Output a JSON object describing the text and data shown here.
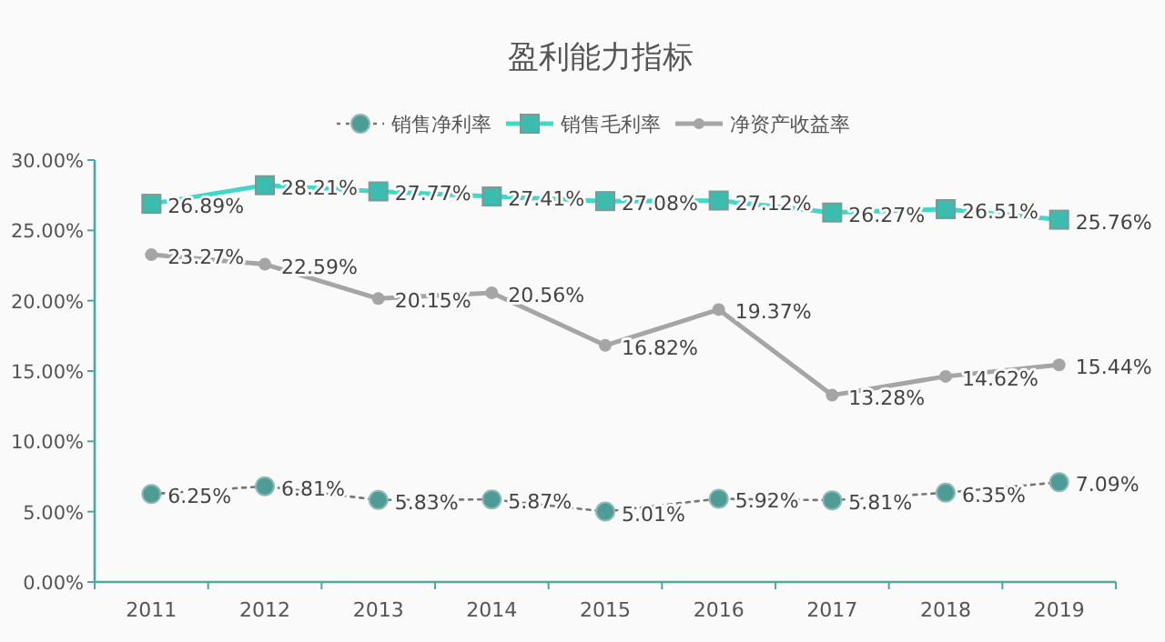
{
  "chart_data": {
    "type": "line",
    "title": "盈利能力指标",
    "categories": [
      "2011",
      "2012",
      "2013",
      "2014",
      "2015",
      "2016",
      "2017",
      "2018",
      "2019"
    ],
    "series": [
      {
        "name": "销售净利率",
        "color": "#4f9b95",
        "marker": "circle",
        "line_style": "dotted",
        "values": [
          6.25,
          6.81,
          5.83,
          5.87,
          5.01,
          5.92,
          5.81,
          6.35,
          7.09
        ],
        "value_labels": [
          "6.25%",
          "6.81%",
          "5.83%",
          "5.87%",
          "5.01%",
          "5.92%",
          "5.81%",
          "6.35%",
          "7.09%"
        ]
      },
      {
        "name": "销售毛利率",
        "color": "#40d9c8",
        "marker": "square",
        "line_style": "solid",
        "values": [
          26.89,
          28.21,
          27.77,
          27.41,
          27.08,
          27.12,
          26.27,
          26.51,
          25.76
        ],
        "value_labels": [
          "26.89%",
          "28.21%",
          "27.77%",
          "27.41%",
          "27.08%",
          "27.12%",
          "26.27%",
          "26.51%",
          "25.76%"
        ]
      },
      {
        "name": "净资产收益率",
        "color": "#a5a5a5",
        "marker": "circle",
        "line_style": "solid",
        "values": [
          23.27,
          22.59,
          20.15,
          20.56,
          16.82,
          19.37,
          13.28,
          14.62,
          15.44
        ],
        "value_labels": [
          "23.27%",
          "22.59%",
          "20.15%",
          "20.56%",
          "16.82%",
          "19.37%",
          "13.28%",
          "14.62%",
          "15.44%"
        ]
      }
    ],
    "ylim": [
      0,
      30
    ],
    "yticks": [
      {
        "value": 0,
        "label": "0.00%"
      },
      {
        "value": 5,
        "label": "5.00%"
      },
      {
        "value": 10,
        "label": "10.00%"
      },
      {
        "value": 15,
        "label": "15.00%"
      },
      {
        "value": 20,
        "label": "20.00%"
      },
      {
        "value": 25,
        "label": "25.00%"
      },
      {
        "value": 30,
        "label": "30.00%"
      }
    ],
    "legend": "top",
    "grid": false
  }
}
